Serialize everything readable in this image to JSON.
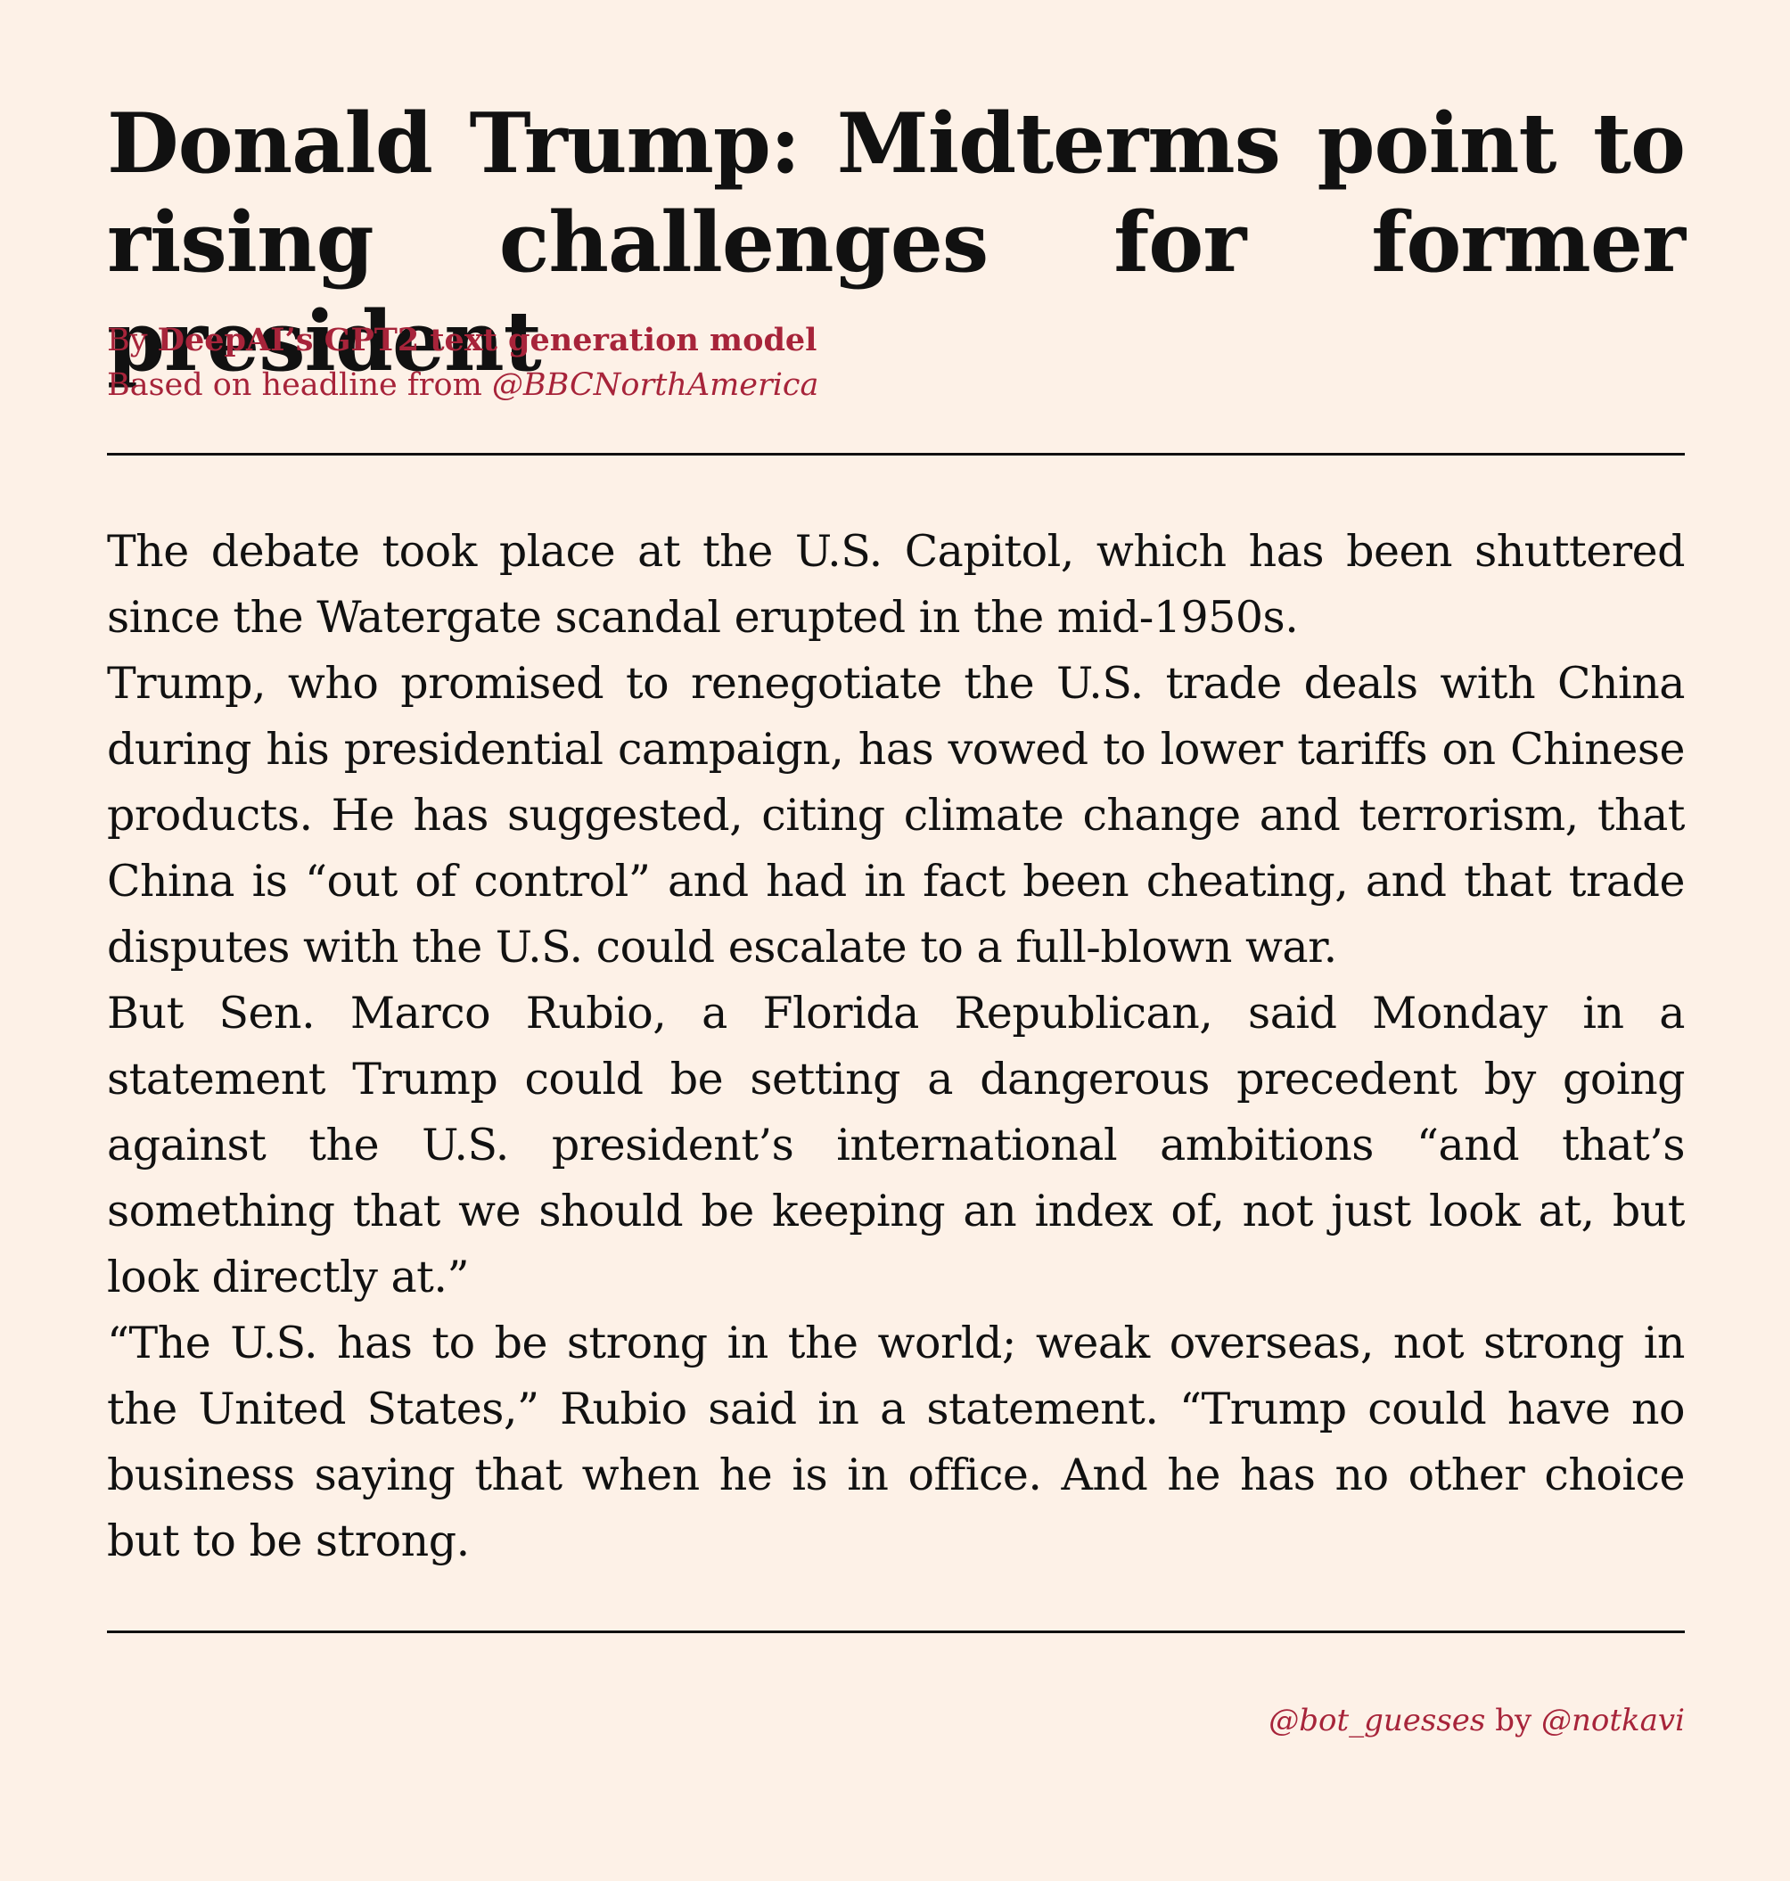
{
  "article": {
    "headline": "Donald Trump: Midterms point to rising challenges for former president",
    "byline": {
      "by_prefix": "By",
      "author": "DeepAI’s GPT2 text generation model",
      "source_prefix": "Based on headline from",
      "source_handle": "@BBCNorthAmerica"
    },
    "paragraphs": [
      "The debate took place at the U.S. Capitol, which has been shuttered since the Watergate scandal erupted in the mid-1950s.",
      "Trump, who promised to renegotiate the U.S. trade deals with China during his presidential campaign, has vowed to lower tariffs on Chinese products. He has suggested, citing climate change and terrorism, that China is “out of control” and had in fact been cheating, and that trade disputes with the U.S. could escalate to a full-blown war.",
      "But Sen. Marco Rubio, a Florida Republican, said Monday in a statement Trump could be setting a dangerous precedent by going against the U.S. president’s international ambitions “and that’s something that we should be keeping an index of, not just look at, but look directly at.”",
      "“The U.S. has to be strong in the world; weak overseas, not strong in the United States,” Rubio said in a statement. “Trump could have no business saying that when he is in office. And he has no other choice but to be strong."
    ]
  },
  "footer": {
    "bot_handle": "@bot_guesses",
    "by_word": "by",
    "creator_handle": "@notkavi"
  },
  "colors": {
    "background": "#fdf1e7",
    "accent": "#a7243a",
    "text": "#111111"
  }
}
